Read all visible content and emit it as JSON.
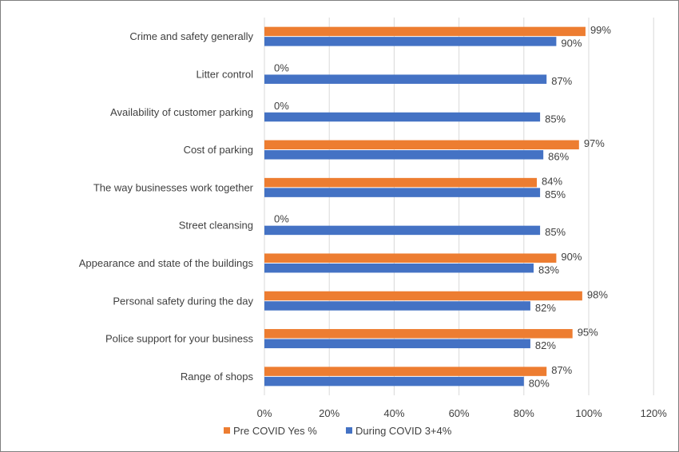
{
  "chart_data": {
    "type": "bar",
    "orientation": "horizontal",
    "categories": [
      "Crime and safety generally",
      "Litter control",
      "Availability of customer parking",
      "Cost of parking",
      "The way businesses work together",
      "Street cleansing",
      "Appearance and state of the buildings",
      "Personal safety during the day",
      "Police support for your business",
      "Range of shops"
    ],
    "series": [
      {
        "name": "Pre COVID Yes %",
        "color": "#ED7D31",
        "values": [
          99,
          0,
          0,
          97,
          84,
          0,
          90,
          98,
          95,
          87
        ],
        "labels": [
          "99%",
          "0%",
          "0%",
          "97%",
          "84%",
          "0%",
          "90%",
          "98%",
          "95%",
          "87%"
        ]
      },
      {
        "name": "During COVID 3+4%",
        "color": "#4472C4",
        "values": [
          90,
          87,
          85,
          86,
          85,
          85,
          83,
          82,
          82,
          80
        ],
        "labels": [
          "90%",
          "87%",
          "85%",
          "86%",
          "85%",
          "85%",
          "83%",
          "82%",
          "82%",
          "80%"
        ]
      }
    ],
    "xlim": [
      0,
      120
    ],
    "xticks": [
      "0%",
      "20%",
      "40%",
      "60%",
      "80%",
      "100%",
      "120%"
    ],
    "xtick_values": [
      0,
      20,
      40,
      60,
      80,
      100,
      120
    ],
    "grid": "vertical",
    "legend": "bottom",
    "title": "",
    "xlabel": "",
    "ylabel": ""
  }
}
